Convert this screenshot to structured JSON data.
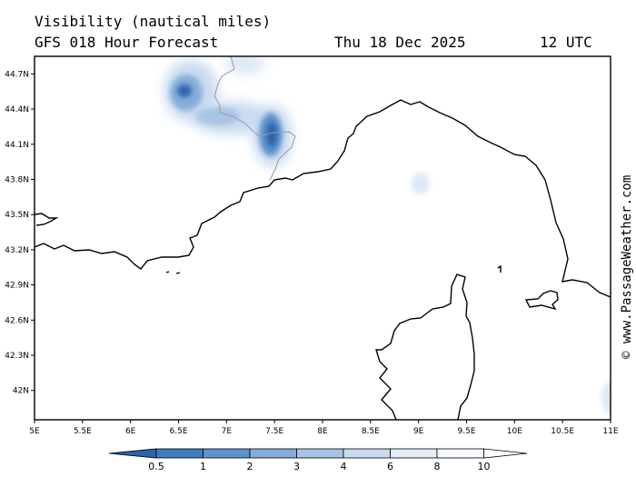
{
  "header": {
    "title": "Visibility (nautical miles)",
    "model_line": "GFS 018 Hour Forecast",
    "date": "Thu 18 Dec 2025",
    "time": "12 UTC"
  },
  "map": {
    "lon_range": [
      5,
      11
    ],
    "lat_range": [
      41.75,
      44.85
    ],
    "x_ticks": [
      "5E",
      "5.5E",
      "6E",
      "6.5E",
      "7E",
      "7.5E",
      "8E",
      "8.5E",
      "9E",
      "9.5E",
      "10E",
      "10.5E",
      "11E"
    ],
    "y_ticks": [
      "44.7N",
      "44.4N",
      "44.1N",
      "43.8N",
      "43.5N",
      "43.2N",
      "42.9N",
      "42.6N",
      "42.3N",
      "42N"
    ],
    "land_color": "#ffffff",
    "coast_color": "#000000",
    "border_color": "#999999"
  },
  "legend": {
    "labels": [
      "0.5",
      "1",
      "2",
      "3",
      "4",
      "6",
      "8",
      "10"
    ],
    "colors": [
      "#2c64ab",
      "#3f7bbf",
      "#5f93cd",
      "#86add9",
      "#a8c4e4",
      "#c9dbef",
      "#e3edf8",
      "#f5f9fd",
      "#ffffff"
    ]
  },
  "credit": "© www.PassageWeather.com"
}
